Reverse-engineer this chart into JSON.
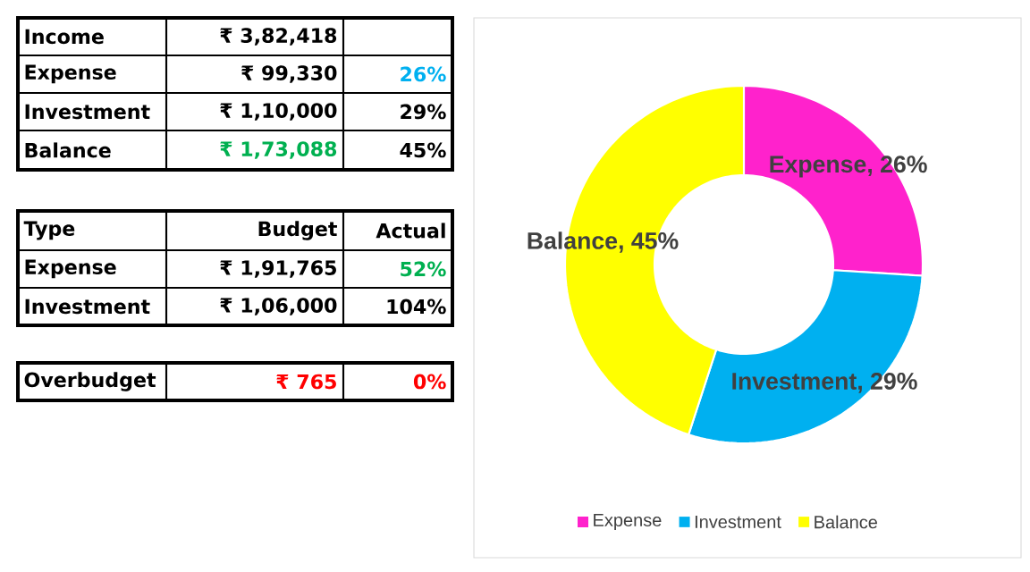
{
  "chart_data": [
    {
      "type": "other",
      "annotations": [
        "Income",
        "₹ 3,82,418",
        "Expense",
        "₹ 99,330",
        "26%",
        "Investment",
        "₹ 1,10,000",
        "29%",
        "Balance",
        "₹ 1,73,088",
        "45%",
        "Type",
        "Budget",
        "Actual",
        "Expense",
        "₹ 1,91,765",
        "52%",
        "Investment",
        "₹ 1,06,000",
        "104%",
        "Overbudget",
        "₹ 765",
        "0%"
      ]
    },
    {
      "type": "donut",
      "categories": [
        "Expense",
        "Investment",
        "Balance"
      ],
      "values": [
        26,
        29,
        45
      ],
      "colors": [
        "#ff22cc",
        "#00b0f0",
        "#ffff00"
      ],
      "value_labels": [
        "Expense, 26%",
        "Investment, 29%",
        "Balance, 45%"
      ],
      "legend": "bottom"
    }
  ]
}
